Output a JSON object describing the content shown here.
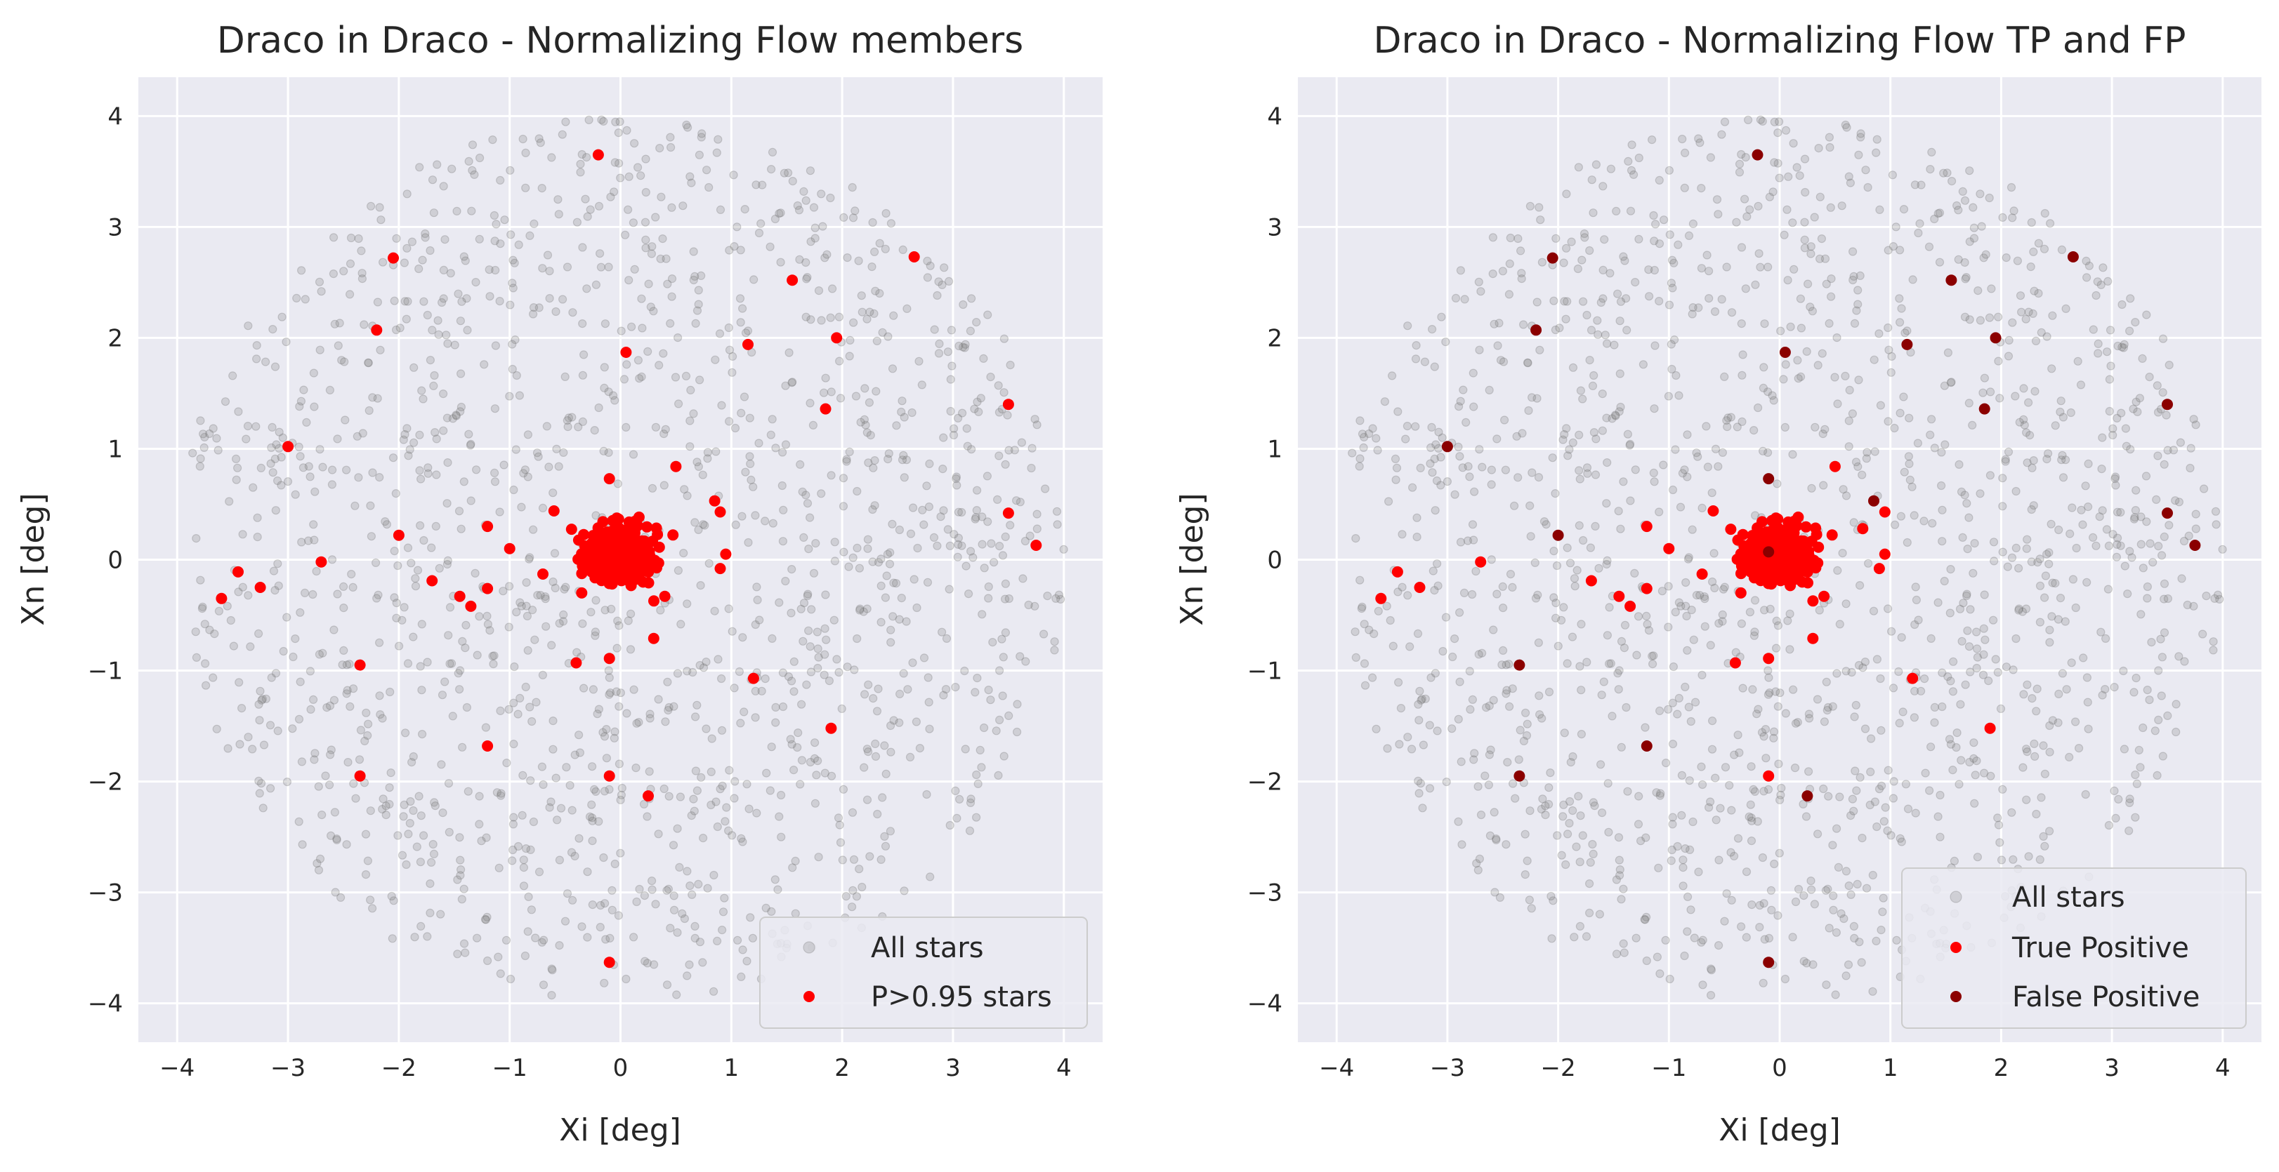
{
  "chart_data": [
    {
      "type": "scatter",
      "title": "Draco in Draco - Normalizing Flow members",
      "xlabel": "Xi [deg]",
      "ylabel": "Xn [deg]",
      "xlim": [
        -4.35,
        4.35
      ],
      "ylim": [
        -4.35,
        4.35
      ],
      "xticks": [
        -4,
        -3,
        -2,
        -1,
        0,
        1,
        2,
        3,
        4
      ],
      "yticks": [
        -4,
        -3,
        -2,
        -1,
        0,
        1,
        2,
        3,
        4
      ],
      "tick_labels": [
        "−4",
        "−3",
        "−2",
        "−1",
        "0",
        "1",
        "2",
        "3",
        "4"
      ],
      "grid": true,
      "legend_position": "lower-right",
      "background_points": {
        "name": "All stars",
        "color": "#808080",
        "count": 1500,
        "distribution": "uniform disc radius 4"
      },
      "series": [
        {
          "name": "P>0.95 stars",
          "color": "#ff0000",
          "x": [
            -0.2,
            -2.05,
            -2.2,
            1.55,
            2.65,
            0.05,
            1.15,
            1.95,
            1.85,
            3.5,
            -3.0,
            0.5,
            -0.1,
            0.85,
            0.9,
            3.5,
            3.75,
            -0.6,
            -1.2,
            -1.0,
            -2.0,
            -2.7,
            -3.45,
            -3.6,
            -3.25,
            -1.7,
            -1.45,
            -1.35,
            -1.2,
            -0.7,
            -0.35,
            0.4,
            0.3,
            -0.4,
            -0.1,
            1.2,
            -2.35,
            -2.35,
            -1.2,
            1.9,
            -0.1,
            0.25,
            -0.1,
            0.95,
            0.9
          ],
          "y": [
            3.65,
            2.72,
            2.07,
            2.52,
            2.73,
            1.87,
            1.94,
            2.0,
            1.36,
            1.4,
            1.02,
            0.84,
            0.73,
            0.53,
            0.43,
            0.42,
            0.13,
            0.44,
            0.3,
            0.1,
            0.22,
            -0.02,
            -0.11,
            -0.35,
            -0.25,
            -0.19,
            -0.33,
            -0.42,
            -0.26,
            -0.13,
            -0.3,
            -0.33,
            -0.71,
            -0.93,
            -0.89,
            -1.07,
            -0.95,
            -1.95,
            -1.68,
            -1.52,
            -1.95,
            -2.13,
            -3.63,
            0.05,
            -0.08
          ],
          "core_cluster": {
            "count": 320,
            "center": [
              0.0,
              0.05
            ]
          }
        }
      ]
    },
    {
      "type": "scatter",
      "title": "Draco in Draco - Normalizing Flow TP and FP",
      "xlabel": "Xi [deg]",
      "ylabel": "Xn [deg]",
      "xlim": [
        -4.35,
        4.35
      ],
      "ylim": [
        -4.35,
        4.35
      ],
      "xticks": [
        -4,
        -3,
        -2,
        -1,
        0,
        1,
        2,
        3,
        4
      ],
      "yticks": [
        -4,
        -3,
        -2,
        -1,
        0,
        1,
        2,
        3,
        4
      ],
      "tick_labels": [
        "−4",
        "−3",
        "−2",
        "−1",
        "0",
        "1",
        "2",
        "3",
        "4"
      ],
      "grid": true,
      "legend_position": "lower-right",
      "background_points": {
        "name": "All stars",
        "color": "#808080",
        "count": 1500,
        "distribution": "uniform disc radius 4"
      },
      "series": [
        {
          "name": "True Positive",
          "color": "#ff0000",
          "x": [
            0.5,
            0.95,
            -0.6,
            -1.2,
            -1.0,
            -2.7,
            -3.45,
            -3.6,
            -3.25,
            -1.7,
            -1.45,
            -1.35,
            -1.2,
            -0.7,
            -0.35,
            0.4,
            0.3,
            -0.4,
            -0.1,
            1.2,
            1.9,
            -0.1,
            0.95,
            0.9,
            0.75
          ],
          "y": [
            0.84,
            0.43,
            0.44,
            0.3,
            0.1,
            -0.02,
            -0.11,
            -0.35,
            -0.25,
            -0.19,
            -0.33,
            -0.42,
            -0.26,
            -0.13,
            -0.3,
            -0.33,
            -0.71,
            -0.93,
            -0.89,
            -1.07,
            -1.52,
            -1.95,
            0.05,
            -0.08,
            0.28
          ],
          "core_cluster": {
            "count": 320,
            "center": [
              0.0,
              0.05
            ]
          }
        },
        {
          "name": "False Positive",
          "color": "#8b0000",
          "x": [
            -0.2,
            -2.05,
            -2.2,
            1.55,
            2.65,
            0.05,
            1.15,
            1.95,
            1.85,
            3.5,
            -3.0,
            -0.1,
            0.85,
            3.5,
            3.75,
            -2.0,
            -2.35,
            -2.35,
            -1.2,
            0.25,
            -0.1,
            -0.1
          ],
          "y": [
            3.65,
            2.72,
            2.07,
            2.52,
            2.73,
            1.87,
            1.94,
            2.0,
            1.36,
            1.4,
            1.02,
            0.73,
            0.53,
            0.42,
            0.13,
            0.22,
            -0.95,
            -1.95,
            -1.68,
            -2.13,
            -3.63,
            0.07
          ]
        }
      ]
    }
  ]
}
